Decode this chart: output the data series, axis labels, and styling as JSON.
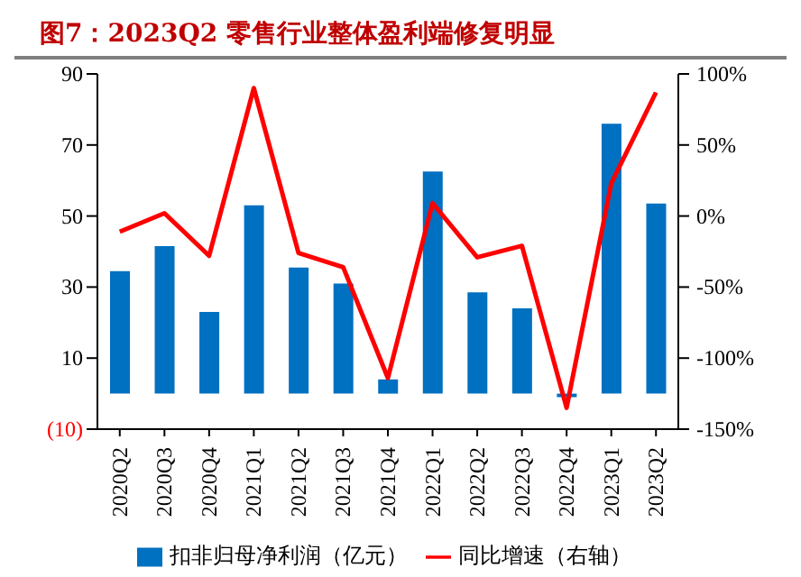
{
  "chart_data": {
    "type": "bar",
    "title": "图7：2023Q2 零售行业整体盈利端修复明显",
    "categories": [
      "2020Q2",
      "2020Q3",
      "2020Q4",
      "2021Q1",
      "2021Q2",
      "2021Q3",
      "2021Q4",
      "2022Q1",
      "2022Q2",
      "2022Q3",
      "2022Q4",
      "2023Q1",
      "2023Q2"
    ],
    "series": [
      {
        "name": "扣非归母净利润（亿元）",
        "color": "#0070c0",
        "values": [
          34.5,
          41.5,
          23,
          53,
          35.5,
          31,
          4,
          62.5,
          28.5,
          24,
          -1,
          76,
          53.5
        ]
      },
      {
        "name": "同比增速（右轴）",
        "type": "line",
        "axis": "y2",
        "color": "#ff0000",
        "values": [
          -11,
          2,
          -28,
          90,
          -26,
          -36,
          -114,
          9,
          -29,
          -21,
          -135,
          23,
          87
        ]
      }
    ],
    "ylim": [
      -10,
      90
    ],
    "yticks": [
      {
        "value": -10,
        "label": "(10)"
      },
      10,
      30,
      50,
      70,
      90
    ],
    "y2lim": [
      -150,
      100
    ],
    "y2ticks": [
      {
        "value": -150,
        "label": "-150%"
      },
      {
        "value": -100,
        "label": "-100%"
      },
      {
        "value": -50,
        "label": "-50%"
      },
      {
        "value": 0,
        "label": "0%"
      },
      {
        "value": 50,
        "label": "50%"
      },
      {
        "value": 100,
        "label": "100%"
      }
    ],
    "grid": false,
    "legend": "bottom",
    "marker": "none",
    "line_style": "solid"
  }
}
